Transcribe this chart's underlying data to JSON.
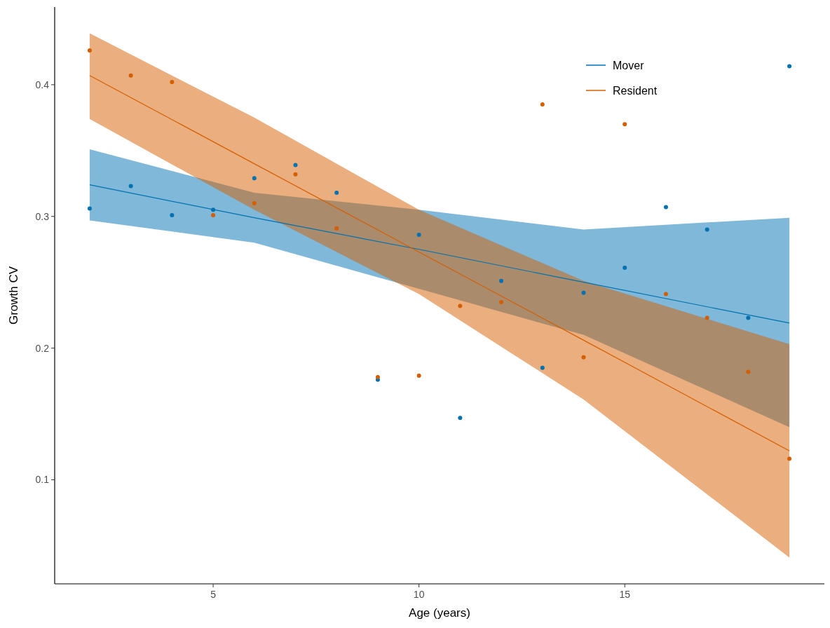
{
  "chart_data": {
    "type": "scatter",
    "xlabel": "Age (years)",
    "ylabel": "Growth CV",
    "xlim": [
      1.15,
      19.85
    ],
    "ylim": [
      0.021,
      0.459
    ],
    "xticks": [
      5,
      10,
      15
    ],
    "yticks": [
      0.1,
      0.2,
      0.3,
      0.4
    ],
    "grid": false,
    "legend": "top right",
    "marker": "circle",
    "series": [
      {
        "color": "#0072b2",
        "x": [
          2,
          3,
          4,
          5,
          6,
          7,
          8,
          9,
          10,
          11,
          12,
          13,
          14,
          15,
          16,
          17,
          18,
          19
        ],
        "values": [
          0.306,
          0.323,
          0.301,
          0.305,
          0.329,
          0.339,
          0.318,
          0.176,
          0.286,
          0.147,
          0.251,
          0.185,
          0.242,
          0.261,
          0.307,
          0.29,
          0.223,
          0.414
        ]
      },
      {
        "color": "#d55e00",
        "x": [
          2,
          3,
          4,
          5,
          6,
          7,
          8,
          9,
          10,
          11,
          12,
          13,
          14,
          15,
          16,
          17,
          18,
          19
        ],
        "values": [
          0.426,
          0.407,
          0.402,
          0.301,
          0.31,
          0.332,
          0.291,
          0.178,
          0.179,
          0.232,
          0.235,
          0.385,
          0.193,
          0.37,
          0.241,
          0.223,
          0.182,
          0.116
        ]
      },
      {
        "type": "line",
        "name": "Mover",
        "marker": "none",
        "color": "#0072b2",
        "x": [
          2,
          6,
          10,
          14,
          19
        ],
        "values": [
          0.324,
          0.299,
          0.275,
          0.25,
          0.219
        ],
        "lower": [
          0.297,
          0.28,
          0.245,
          0.21,
          0.14
        ],
        "upper": [
          0.351,
          0.318,
          0.305,
          0.29,
          0.299
        ]
      },
      {
        "type": "line",
        "name": "Resident",
        "marker": "none",
        "color": "#d55e00",
        "x": [
          2,
          6,
          10,
          14,
          19
        ],
        "values": [
          0.407,
          0.34,
          0.273,
          0.206,
          0.122
        ],
        "lower": [
          0.374,
          0.305,
          0.241,
          0.161,
          0.041
        ],
        "upper": [
          0.439,
          0.375,
          0.305,
          0.251,
          0.203
        ]
      }
    ]
  }
}
